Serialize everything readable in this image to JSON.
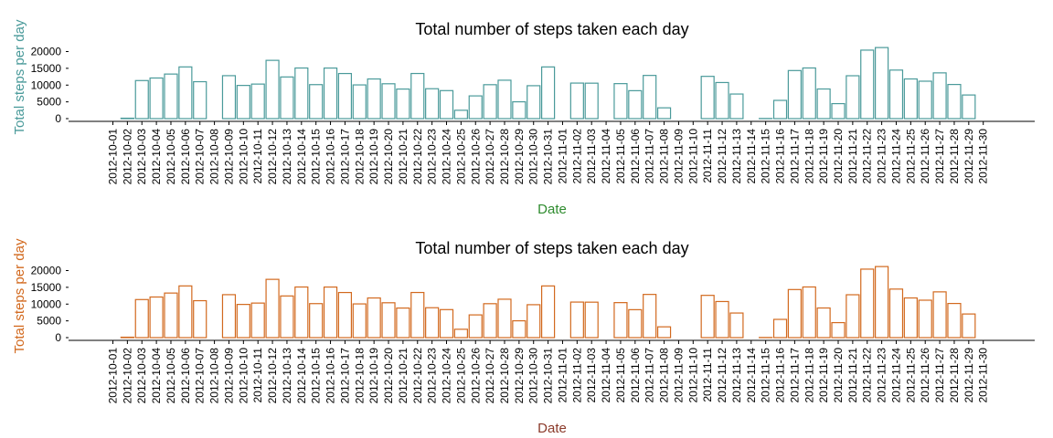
{
  "chart_data": [
    {
      "type": "bar",
      "title": "Total number of steps taken each day",
      "xlabel": "Date",
      "ylabel": "Total steps per day",
      "xlabel_color": "#2e8b2e",
      "ylabel_color": "#4a9a9a",
      "bar_color": "#4a9a9a",
      "ylim": [
        0,
        21500
      ],
      "yticks": [
        0,
        5000,
        10000,
        15000,
        20000
      ],
      "grid": false,
      "categories": [
        "2012-10-01",
        "2012-10-02",
        "2012-10-03",
        "2012-10-04",
        "2012-10-05",
        "2012-10-06",
        "2012-10-07",
        "2012-10-08",
        "2012-10-09",
        "2012-10-10",
        "2012-10-11",
        "2012-10-12",
        "2012-10-13",
        "2012-10-14",
        "2012-10-15",
        "2012-10-16",
        "2012-10-17",
        "2012-10-18",
        "2012-10-19",
        "2012-10-20",
        "2012-10-21",
        "2012-10-22",
        "2012-10-23",
        "2012-10-24",
        "2012-10-25",
        "2012-10-26",
        "2012-10-27",
        "2012-10-28",
        "2012-10-29",
        "2012-10-30",
        "2012-10-31",
        "2012-11-01",
        "2012-11-02",
        "2012-11-03",
        "2012-11-04",
        "2012-11-05",
        "2012-11-06",
        "2012-11-07",
        "2012-11-08",
        "2012-11-09",
        "2012-11-10",
        "2012-11-11",
        "2012-11-12",
        "2012-11-13",
        "2012-11-14",
        "2012-11-15",
        "2012-11-16",
        "2012-11-17",
        "2012-11-18",
        "2012-11-19",
        "2012-11-20",
        "2012-11-21",
        "2012-11-22",
        "2012-11-23",
        "2012-11-24",
        "2012-11-25",
        "2012-11-26",
        "2012-11-27",
        "2012-11-28",
        "2012-11-29",
        "2012-11-30"
      ],
      "values": [
        0,
        126,
        11352,
        12116,
        13294,
        15420,
        11015,
        0,
        12811,
        9900,
        10304,
        17382,
        12426,
        15098,
        10139,
        15084,
        13452,
        10056,
        11829,
        10395,
        8821,
        13460,
        8918,
        8355,
        2492,
        6778,
        10119,
        11458,
        5018,
        9819,
        15414,
        0,
        10600,
        10571,
        0,
        10439,
        8334,
        12883,
        3219,
        0,
        0,
        12608,
        10765,
        7336,
        0,
        41,
        5441,
        14339,
        15110,
        8841,
        4472,
        12787,
        20427,
        21194,
        14478,
        11834,
        11162,
        13646,
        10183,
        7047,
        0
      ]
    },
    {
      "type": "bar",
      "title": "Total number of steps taken each day",
      "xlabel": "Date",
      "ylabel": "Total steps per day",
      "xlabel_color": "#8b3a2a",
      "ylabel_color": "#d2691e",
      "bar_color": "#d2691e",
      "ylim": [
        0,
        21500
      ],
      "yticks": [
        0,
        5000,
        10000,
        15000,
        20000
      ],
      "grid": false,
      "categories": [
        "2012-10-01",
        "2012-10-02",
        "2012-10-03",
        "2012-10-04",
        "2012-10-05",
        "2012-10-06",
        "2012-10-07",
        "2012-10-08",
        "2012-10-09",
        "2012-10-10",
        "2012-10-11",
        "2012-10-12",
        "2012-10-13",
        "2012-10-14",
        "2012-10-15",
        "2012-10-16",
        "2012-10-17",
        "2012-10-18",
        "2012-10-19",
        "2012-10-20",
        "2012-10-21",
        "2012-10-22",
        "2012-10-23",
        "2012-10-24",
        "2012-10-25",
        "2012-10-26",
        "2012-10-27",
        "2012-10-28",
        "2012-10-29",
        "2012-10-30",
        "2012-10-31",
        "2012-11-01",
        "2012-11-02",
        "2012-11-03",
        "2012-11-04",
        "2012-11-05",
        "2012-11-06",
        "2012-11-07",
        "2012-11-08",
        "2012-11-09",
        "2012-11-10",
        "2012-11-11",
        "2012-11-12",
        "2012-11-13",
        "2012-11-14",
        "2012-11-15",
        "2012-11-16",
        "2012-11-17",
        "2012-11-18",
        "2012-11-19",
        "2012-11-20",
        "2012-11-21",
        "2012-11-22",
        "2012-11-23",
        "2012-11-24",
        "2012-11-25",
        "2012-11-26",
        "2012-11-27",
        "2012-11-28",
        "2012-11-29",
        "2012-11-30"
      ],
      "values": [
        0,
        126,
        11352,
        12116,
        13294,
        15420,
        11015,
        0,
        12811,
        9900,
        10304,
        17382,
        12426,
        15098,
        10139,
        15084,
        13452,
        10056,
        11829,
        10395,
        8821,
        13460,
        8918,
        8355,
        2492,
        6778,
        10119,
        11458,
        5018,
        9819,
        15414,
        0,
        10600,
        10571,
        0,
        10439,
        8334,
        12883,
        3219,
        0,
        0,
        12608,
        10765,
        7336,
        0,
        41,
        5441,
        14339,
        15110,
        8841,
        4472,
        12787,
        20427,
        21194,
        14478,
        11834,
        11162,
        13646,
        10183,
        7047,
        0
      ]
    }
  ]
}
